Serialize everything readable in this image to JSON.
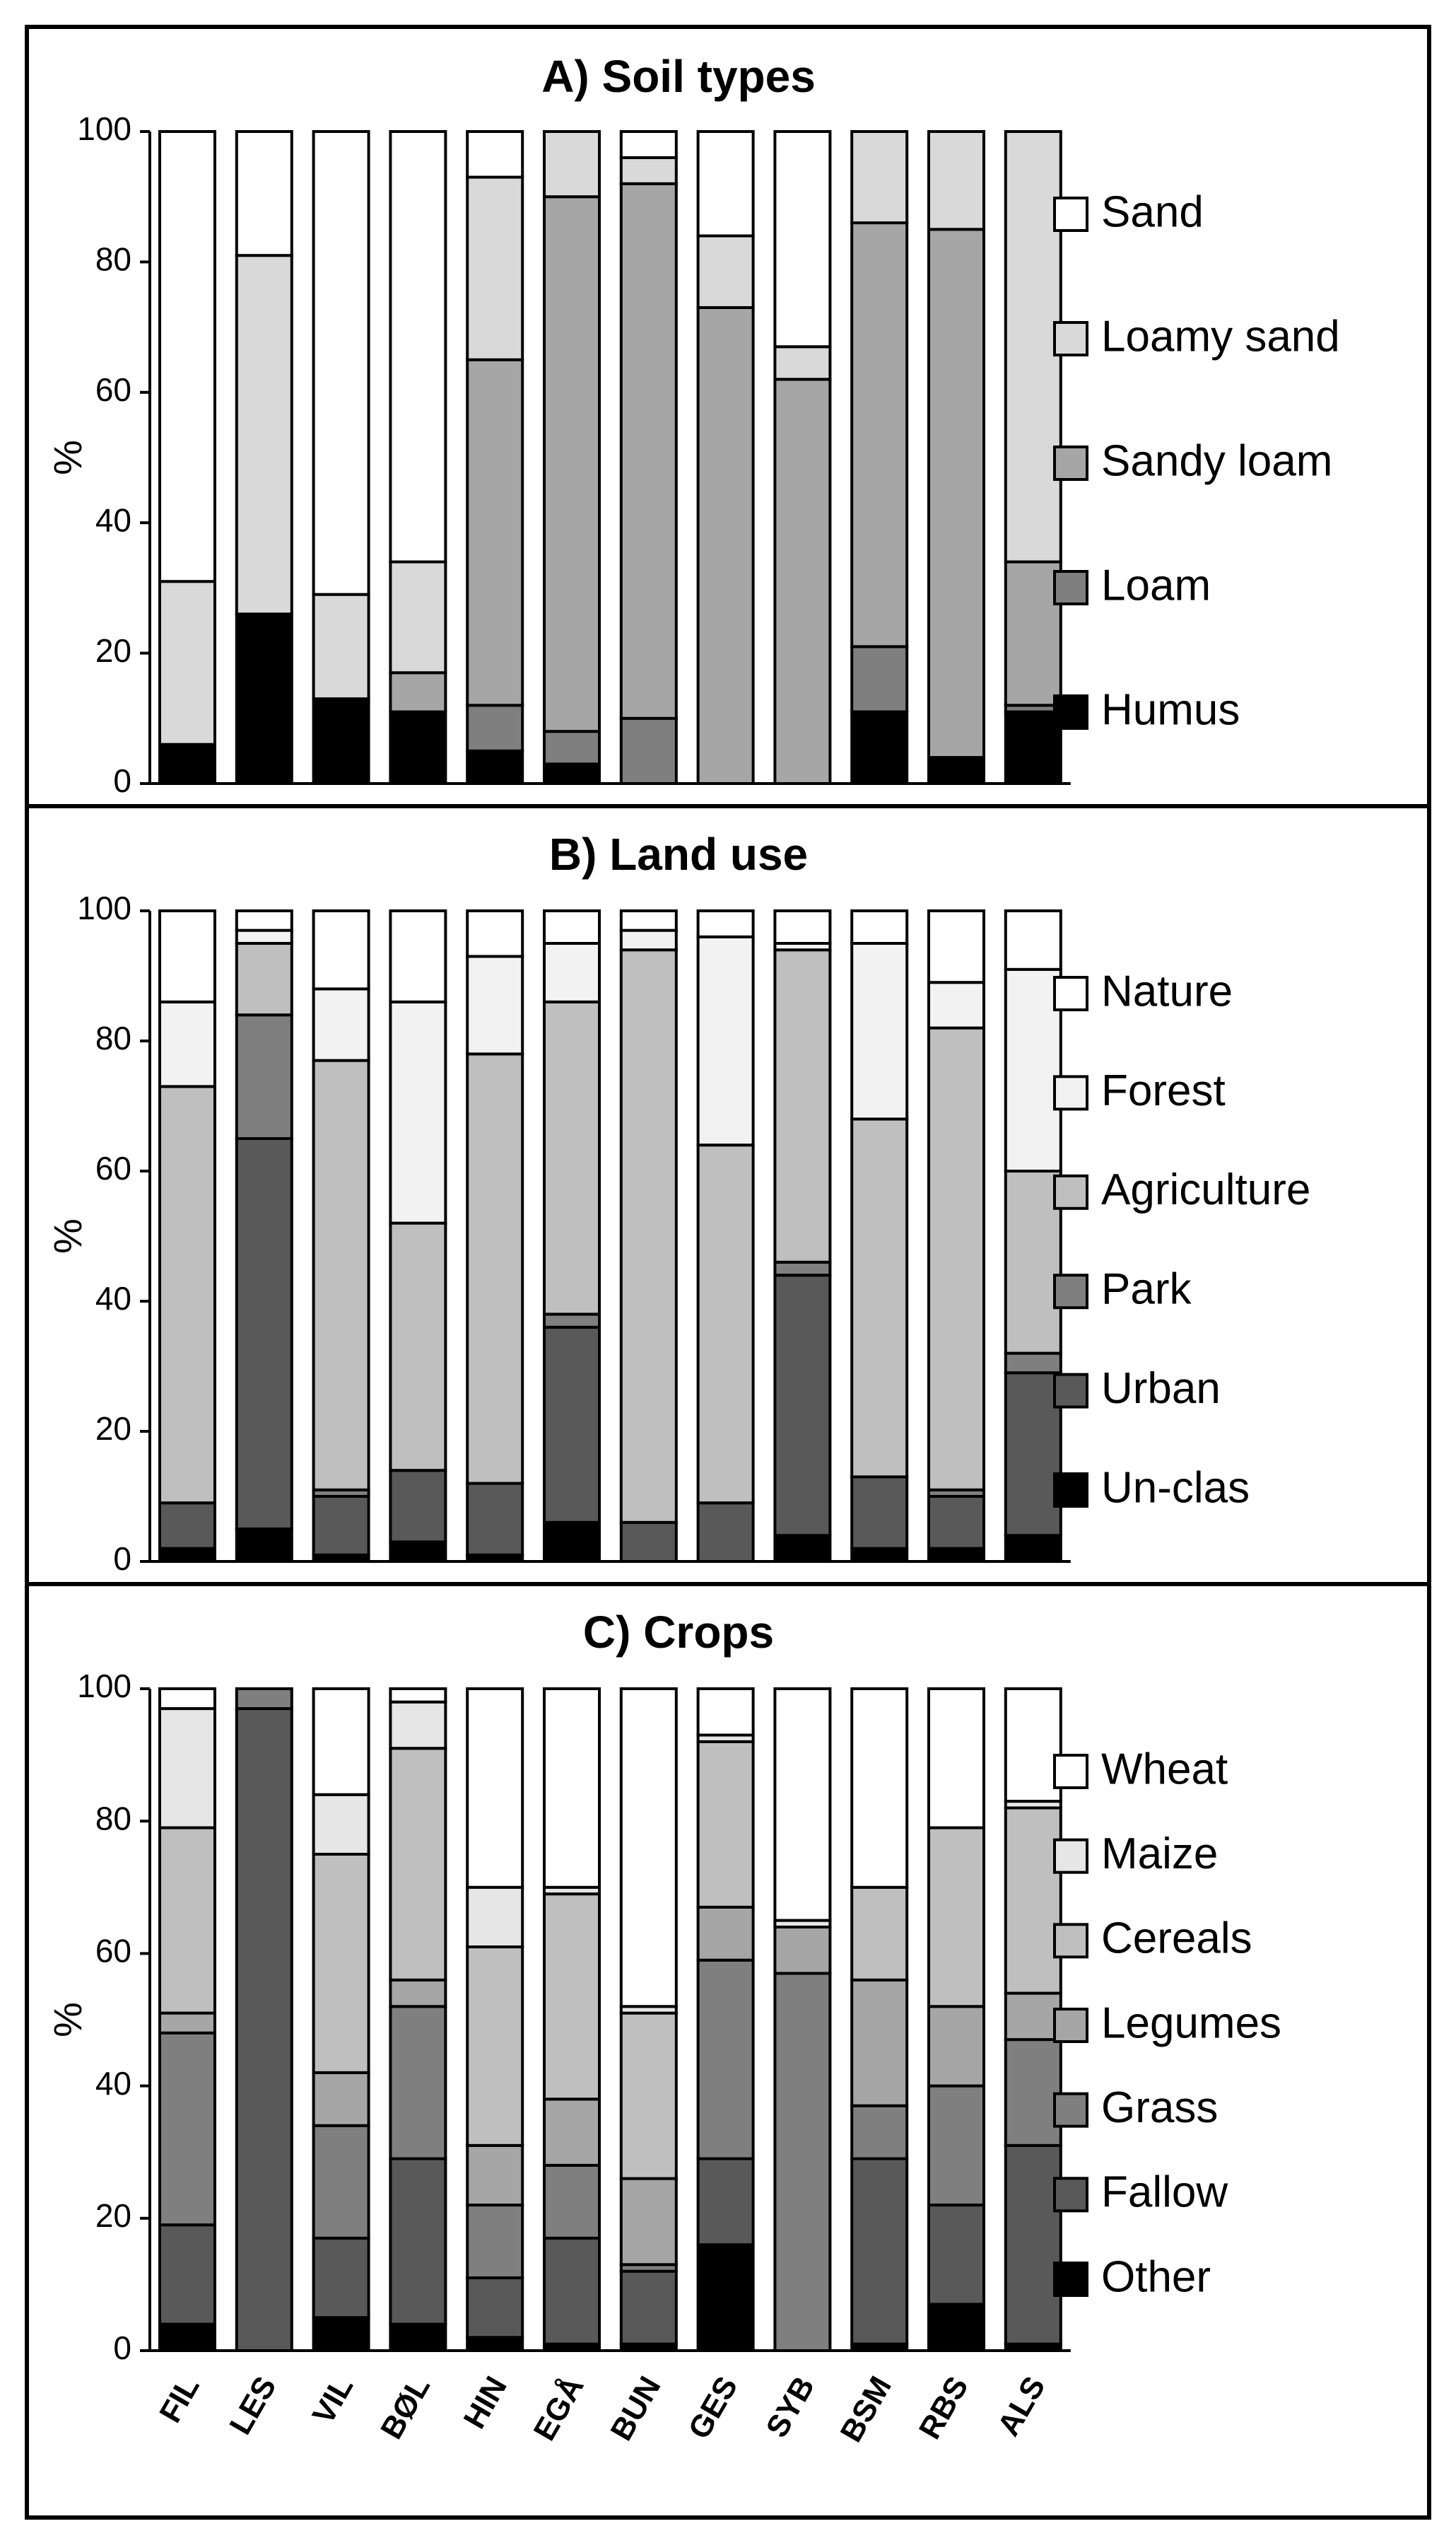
{
  "chart_data": [
    {
      "type": "bar",
      "stacked": true,
      "title": "A) Soil types",
      "ylabel": "%",
      "ylim": [
        0,
        100
      ],
      "yticks": [
        0,
        20,
        40,
        60,
        80,
        100
      ],
      "categories": [
        "FIL",
        "LES",
        "VIL",
        "BØL",
        "HIN",
        "EGÅ",
        "BUN",
        "GES",
        "SYB",
        "BSM",
        "RBS",
        "ALS"
      ],
      "legend_position": "right",
      "series": [
        {
          "name": "Humus",
          "color": "#000000",
          "values": [
            6,
            26,
            13,
            11,
            5,
            3,
            0,
            0,
            0,
            11,
            4,
            11
          ]
        },
        {
          "name": "Loam",
          "color": "#7f7f7f",
          "values": [
            0,
            0,
            0,
            0,
            7,
            5,
            10,
            0,
            0,
            10,
            0,
            1
          ]
        },
        {
          "name": "Sandy loam",
          "color": "#a6a6a6",
          "values": [
            0,
            0,
            0,
            6,
            53,
            82,
            82,
            73,
            62,
            65,
            81,
            22
          ]
        },
        {
          "name": "Loamy sand",
          "color": "#d9d9d9",
          "values": [
            25,
            55,
            16,
            17,
            28,
            10,
            4,
            11,
            5,
            14,
            15,
            66
          ]
        },
        {
          "name": "Sand",
          "color": "#ffffff",
          "values": [
            69,
            19,
            71,
            66,
            7,
            0,
            4,
            16,
            33,
            0,
            0,
            0
          ]
        }
      ]
    },
    {
      "type": "bar",
      "stacked": true,
      "title": "B) Land use",
      "ylabel": "%",
      "ylim": [
        0,
        100
      ],
      "yticks": [
        0,
        20,
        40,
        60,
        80,
        100
      ],
      "categories": [
        "FIL",
        "LES",
        "VIL",
        "BØL",
        "HIN",
        "EGÅ",
        "BUN",
        "GES",
        "SYB",
        "BSM",
        "RBS",
        "ALS"
      ],
      "legend_position": "right",
      "series": [
        {
          "name": "Un-clas",
          "color": "#000000",
          "values": [
            2,
            5,
            1,
            3,
            1,
            6,
            0,
            0,
            4,
            2,
            2,
            4
          ]
        },
        {
          "name": "Urban",
          "color": "#595959",
          "values": [
            7,
            60,
            9,
            11,
            11,
            30,
            6,
            9,
            40,
            11,
            8,
            25
          ]
        },
        {
          "name": "Park",
          "color": "#7f7f7f",
          "values": [
            0,
            19,
            1,
            0,
            0,
            2,
            0,
            0,
            2,
            0,
            1,
            3
          ]
        },
        {
          "name": "Agriculture",
          "color": "#bfbfbf",
          "values": [
            64,
            11,
            66,
            38,
            66,
            48,
            88,
            55,
            48,
            55,
            71,
            28
          ]
        },
        {
          "name": "Forest",
          "color": "#f2f2f2",
          "values": [
            13,
            2,
            11,
            34,
            15,
            9,
            3,
            32,
            1,
            27,
            7,
            31
          ]
        },
        {
          "name": "Nature",
          "color": "#ffffff",
          "values": [
            14,
            3,
            12,
            14,
            7,
            5,
            3,
            4,
            5,
            5,
            11,
            9
          ]
        }
      ]
    },
    {
      "type": "bar",
      "stacked": true,
      "title": "C) Crops",
      "ylabel": "%",
      "ylim": [
        0,
        100
      ],
      "yticks": [
        0,
        20,
        40,
        60,
        80,
        100
      ],
      "categories": [
        "FIL",
        "LES",
        "VIL",
        "BØL",
        "HIN",
        "EGÅ",
        "BUN",
        "GES",
        "SYB",
        "BSM",
        "RBS",
        "ALS"
      ],
      "legend_position": "right",
      "series": [
        {
          "name": "Other",
          "color": "#000000",
          "values": [
            4,
            0,
            5,
            4,
            2,
            1,
            1,
            16,
            0,
            1,
            7,
            1
          ]
        },
        {
          "name": "Fallow",
          "color": "#595959",
          "values": [
            15,
            97,
            12,
            25,
            9,
            16,
            11,
            13,
            0,
            28,
            15,
            30
          ]
        },
        {
          "name": "Grass",
          "color": "#7f7f7f",
          "values": [
            29,
            3,
            17,
            23,
            11,
            11,
            1,
            30,
            57,
            8,
            18,
            16
          ]
        },
        {
          "name": "Legumes",
          "color": "#a6a6a6",
          "values": [
            3,
            0,
            8,
            4,
            9,
            10,
            13,
            8,
            7,
            19,
            12,
            7
          ]
        },
        {
          "name": "Cereals",
          "color": "#bfbfbf",
          "values": [
            28,
            0,
            33,
            35,
            30,
            31,
            25,
            25,
            0,
            14,
            27,
            28
          ]
        },
        {
          "name": "Maize",
          "color": "#e6e6e6",
          "values": [
            18,
            0,
            9,
            7,
            9,
            1,
            1,
            1,
            1,
            0,
            0,
            1
          ]
        },
        {
          "name": "Wheat",
          "color": "#ffffff",
          "values": [
            3,
            0,
            16,
            2,
            30,
            30,
            48,
            7,
            35,
            30,
            21,
            17
          ]
        }
      ]
    }
  ]
}
